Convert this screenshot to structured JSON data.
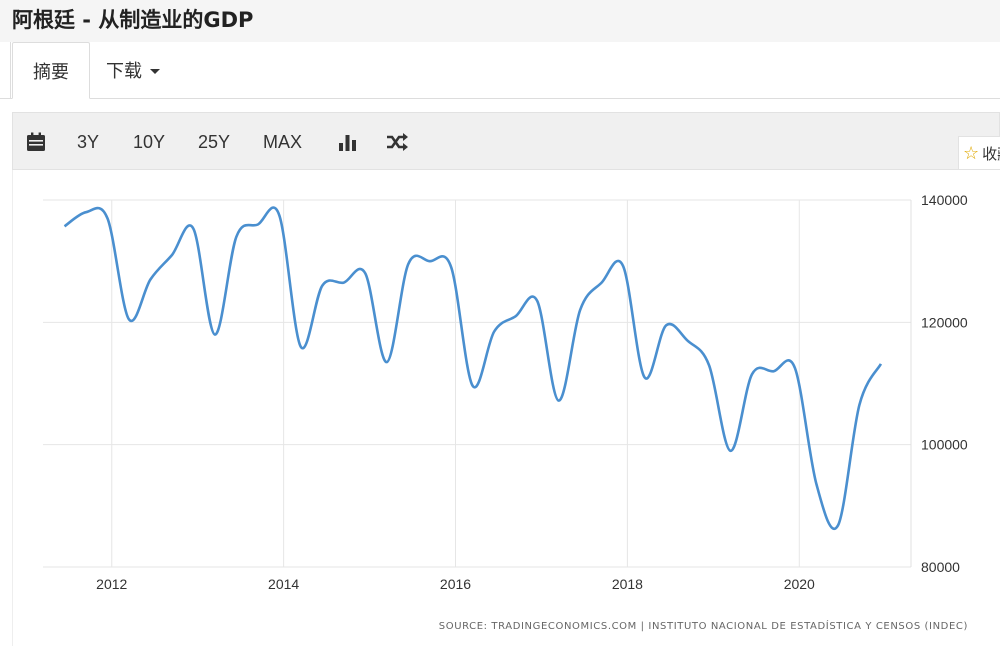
{
  "header": {
    "title": "阿根廷 - 从制造业的GDP"
  },
  "tabs": [
    {
      "label": "摘要"
    },
    {
      "label": "下载"
    }
  ],
  "toolbar": {
    "calendar_icon": "calendar-icon",
    "ranges": [
      "3Y",
      "10Y",
      "25Y",
      "MAX"
    ],
    "bar_icon": "bar-chart-icon",
    "compare_icon": "shuffle-icon"
  },
  "favorite": {
    "label": "收藏",
    "icon": "star-icon"
  },
  "colors": {
    "line": "#4a8fcf",
    "grid": "#e6e6e6",
    "star": "#e0a800"
  },
  "chart_data": {
    "type": "line",
    "xlim": [
      2011.2,
      2021.3
    ],
    "ylim": [
      80000,
      140000
    ],
    "x_ticks": [
      2012,
      2014,
      2016,
      2018,
      2020
    ],
    "x_tick_labels": [
      "2012",
      "2014",
      "2016",
      "2018",
      "2020"
    ],
    "y_ticks": [
      80000,
      100000,
      120000,
      140000
    ],
    "y_tick_labels": [
      "80000",
      "100000",
      "120000",
      "140000"
    ],
    "grid": true,
    "source": "SOURCE: TRADINGECONOMICS.COM | INSTITUTO NACIONAL DE ESTADÍSTICA Y CENSOS (INDEC)",
    "series": [
      {
        "x": [
          2011.45,
          2011.7,
          2011.95,
          2012.2,
          2012.45,
          2012.7,
          2012.95,
          2013.2,
          2013.45,
          2013.7,
          2013.95,
          2014.2,
          2014.45,
          2014.7,
          2014.95,
          2015.2,
          2015.45,
          2015.7,
          2015.95,
          2016.2,
          2016.45,
          2016.7,
          2016.95,
          2017.2,
          2017.45,
          2017.7,
          2017.95,
          2018.2,
          2018.45,
          2018.7,
          2018.95,
          2019.2,
          2019.45,
          2019.7,
          2019.95,
          2020.2,
          2020.45,
          2020.7,
          2020.95
        ],
        "values": [
          135700,
          138000,
          137000,
          120500,
          127000,
          131000,
          135300,
          118000,
          134000,
          136000,
          137500,
          116000,
          126000,
          126500,
          128000,
          113500,
          129500,
          130000,
          129000,
          109600,
          118500,
          121000,
          123500,
          107200,
          122000,
          126500,
          129200,
          111000,
          119500,
          117000,
          113000,
          99000,
          111500,
          112000,
          112500,
          93500,
          86800,
          106500,
          113200
        ]
      }
    ]
  }
}
